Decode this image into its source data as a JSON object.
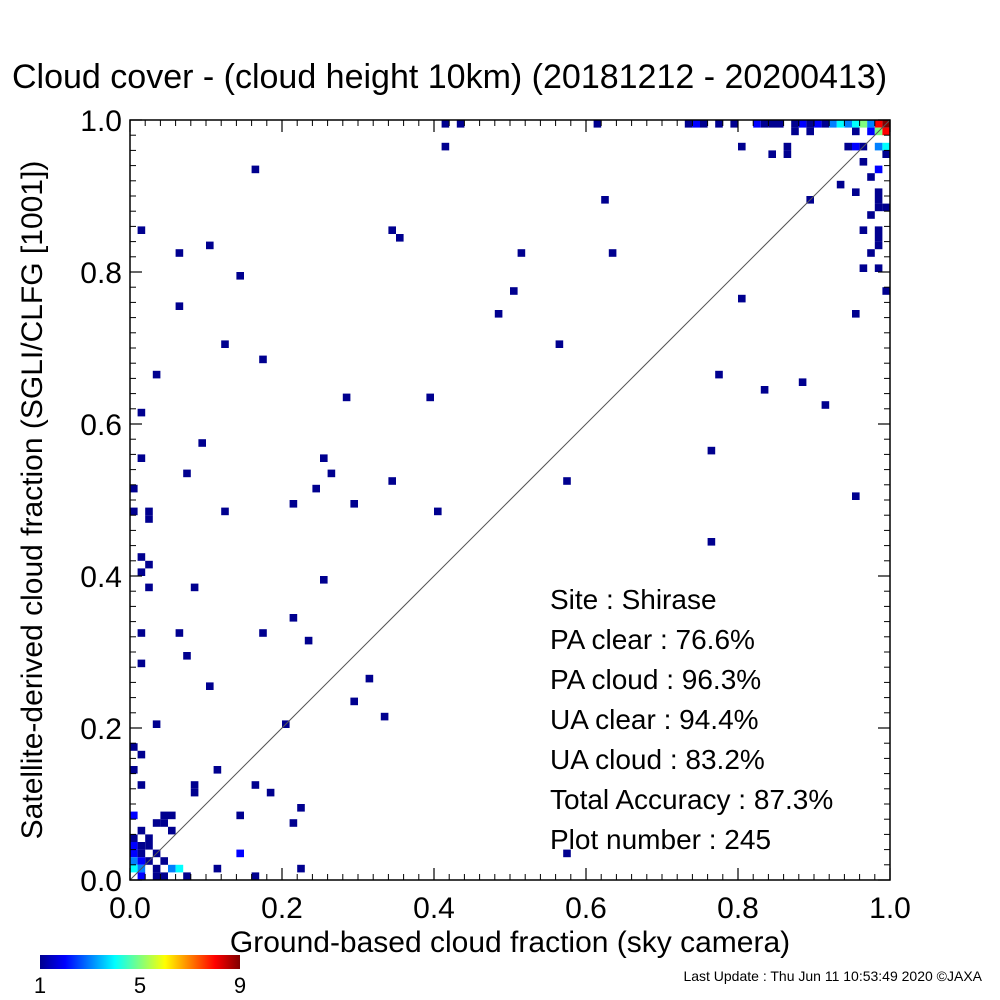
{
  "chart_data": {
    "type": "heatmap",
    "title": "Cloud cover - (cloud height 10km)  (20181212 - 20200413)",
    "xlabel": "Ground-based cloud fraction (sky camera)",
    "ylabel": "Satellite-derived cloud fraction (SGLI/CLFG [1001])",
    "xlim": [
      0.0,
      1.0
    ],
    "ylim": [
      0.0,
      1.0
    ],
    "xticks": [
      "0.0",
      "0.2",
      "0.4",
      "0.6",
      "0.8",
      "1.0"
    ],
    "yticks": [
      "0.0",
      "0.2",
      "0.4",
      "0.6",
      "0.8",
      "1.0"
    ],
    "bin_size": 0.01,
    "diagonal_line": true,
    "colorbar": {
      "min": 1,
      "max": 9,
      "ticks": [
        "1",
        "5",
        "9"
      ]
    },
    "stats": [
      {
        "label": "Site : Shirase"
      },
      {
        "label": "PA clear :  76.6%"
      },
      {
        "label": "PA cloud :  96.3%"
      },
      {
        "label": "UA clear :  94.4%"
      },
      {
        "label": "UA cloud :  83.2%"
      },
      {
        "label": "Total Accuracy :  87.3%"
      },
      {
        "label": "Plot number :       245"
      }
    ],
    "points": [
      {
        "x": 0.16,
        "y": 0.93,
        "c": 1
      },
      {
        "x": 0.01,
        "y": 0.85,
        "c": 1
      },
      {
        "x": 0.06,
        "y": 0.82,
        "c": 1
      },
      {
        "x": 0.1,
        "y": 0.83,
        "c": 1
      },
      {
        "x": 0.14,
        "y": 0.79,
        "c": 1
      },
      {
        "x": 0.06,
        "y": 0.75,
        "c": 1
      },
      {
        "x": 0.12,
        "y": 0.7,
        "c": 1
      },
      {
        "x": 0.17,
        "y": 0.68,
        "c": 1
      },
      {
        "x": 0.03,
        "y": 0.66,
        "c": 1
      },
      {
        "x": 0.01,
        "y": 0.61,
        "c": 1
      },
      {
        "x": 0.09,
        "y": 0.57,
        "c": 1
      },
      {
        "x": 0.01,
        "y": 0.55,
        "c": 1
      },
      {
        "x": 0.07,
        "y": 0.53,
        "c": 1
      },
      {
        "x": 0.0,
        "y": 0.51,
        "c": 1
      },
      {
        "x": 0.0,
        "y": 0.48,
        "c": 1
      },
      {
        "x": 0.02,
        "y": 0.48,
        "c": 1
      },
      {
        "x": 0.02,
        "y": 0.47,
        "c": 1
      },
      {
        "x": 0.12,
        "y": 0.48,
        "c": 1
      },
      {
        "x": 0.01,
        "y": 0.42,
        "c": 1
      },
      {
        "x": 0.02,
        "y": 0.41,
        "c": 1
      },
      {
        "x": 0.01,
        "y": 0.4,
        "c": 1
      },
      {
        "x": 0.02,
        "y": 0.38,
        "c": 1
      },
      {
        "x": 0.08,
        "y": 0.38,
        "c": 1
      },
      {
        "x": 0.01,
        "y": 0.32,
        "c": 1
      },
      {
        "x": 0.06,
        "y": 0.32,
        "c": 1
      },
      {
        "x": 0.07,
        "y": 0.29,
        "c": 1
      },
      {
        "x": 0.01,
        "y": 0.28,
        "c": 1
      },
      {
        "x": 0.1,
        "y": 0.25,
        "c": 1
      },
      {
        "x": 0.03,
        "y": 0.2,
        "c": 1
      },
      {
        "x": 0.0,
        "y": 0.17,
        "c": 1
      },
      {
        "x": 0.01,
        "y": 0.16,
        "c": 1
      },
      {
        "x": 0.0,
        "y": 0.14,
        "c": 1
      },
      {
        "x": 0.11,
        "y": 0.14,
        "c": 1
      },
      {
        "x": 0.01,
        "y": 0.12,
        "c": 1
      },
      {
        "x": 0.08,
        "y": 0.12,
        "c": 1
      },
      {
        "x": 0.08,
        "y": 0.11,
        "c": 1
      },
      {
        "x": 0.16,
        "y": 0.12,
        "c": 1
      },
      {
        "x": 0.18,
        "y": 0.11,
        "c": 1
      },
      {
        "x": 0.22,
        "y": 0.09,
        "c": 1
      },
      {
        "x": 0.14,
        "y": 0.08,
        "c": 1
      },
      {
        "x": 0.21,
        "y": 0.07,
        "c": 1
      },
      {
        "x": 0.0,
        "y": 0.08,
        "c": 2
      },
      {
        "x": 0.03,
        "y": 0.07,
        "c": 1
      },
      {
        "x": 0.04,
        "y": 0.08,
        "c": 1
      },
      {
        "x": 0.05,
        "y": 0.08,
        "c": 1
      },
      {
        "x": 0.04,
        "y": 0.07,
        "c": 1
      },
      {
        "x": 0.01,
        "y": 0.06,
        "c": 1
      },
      {
        "x": 0.0,
        "y": 0.05,
        "c": 1
      },
      {
        "x": 0.02,
        "y": 0.05,
        "c": 1
      },
      {
        "x": 0.05,
        "y": 0.06,
        "c": 1
      },
      {
        "x": 0.0,
        "y": 0.04,
        "c": 2
      },
      {
        "x": 0.01,
        "y": 0.04,
        "c": 1
      },
      {
        "x": 0.02,
        "y": 0.04,
        "c": 1
      },
      {
        "x": 0.0,
        "y": 0.03,
        "c": 2
      },
      {
        "x": 0.01,
        "y": 0.03,
        "c": 1
      },
      {
        "x": 0.03,
        "y": 0.03,
        "c": 1
      },
      {
        "x": 0.14,
        "y": 0.03,
        "c": 2
      },
      {
        "x": 0.0,
        "y": 0.02,
        "c": 3
      },
      {
        "x": 0.01,
        "y": 0.02,
        "c": 2
      },
      {
        "x": 0.02,
        "y": 0.02,
        "c": 1
      },
      {
        "x": 0.04,
        "y": 0.02,
        "c": 1
      },
      {
        "x": 0.0,
        "y": 0.01,
        "c": 4
      },
      {
        "x": 0.01,
        "y": 0.01,
        "c": 3
      },
      {
        "x": 0.03,
        "y": 0.01,
        "c": 1
      },
      {
        "x": 0.05,
        "y": 0.01,
        "c": 3
      },
      {
        "x": 0.06,
        "y": 0.01,
        "c": 4
      },
      {
        "x": 0.11,
        "y": 0.01,
        "c": 1
      },
      {
        "x": 0.22,
        "y": 0.01,
        "c": 1
      },
      {
        "x": 0.01,
        "y": 0.0,
        "c": 2
      },
      {
        "x": 0.03,
        "y": 0.0,
        "c": 1
      },
      {
        "x": 0.04,
        "y": 0.0,
        "c": 1
      },
      {
        "x": 0.07,
        "y": 0.0,
        "c": 1
      },
      {
        "x": 0.16,
        "y": 0.0,
        "c": 1
      },
      {
        "x": 0.34,
        "y": 0.85,
        "c": 1
      },
      {
        "x": 0.35,
        "y": 0.84,
        "c": 1
      },
      {
        "x": 0.28,
        "y": 0.63,
        "c": 1
      },
      {
        "x": 0.39,
        "y": 0.63,
        "c": 1
      },
      {
        "x": 0.25,
        "y": 0.55,
        "c": 1
      },
      {
        "x": 0.26,
        "y": 0.53,
        "c": 1
      },
      {
        "x": 0.24,
        "y": 0.51,
        "c": 1
      },
      {
        "x": 0.34,
        "y": 0.52,
        "c": 1
      },
      {
        "x": 0.21,
        "y": 0.49,
        "c": 1
      },
      {
        "x": 0.29,
        "y": 0.49,
        "c": 1
      },
      {
        "x": 0.4,
        "y": 0.48,
        "c": 1
      },
      {
        "x": 0.25,
        "y": 0.39,
        "c": 1
      },
      {
        "x": 0.21,
        "y": 0.34,
        "c": 1
      },
      {
        "x": 0.17,
        "y": 0.32,
        "c": 1
      },
      {
        "x": 0.23,
        "y": 0.31,
        "c": 1
      },
      {
        "x": 0.31,
        "y": 0.26,
        "c": 1
      },
      {
        "x": 0.29,
        "y": 0.23,
        "c": 1
      },
      {
        "x": 0.33,
        "y": 0.21,
        "c": 1
      },
      {
        "x": 0.2,
        "y": 0.2,
        "c": 1
      },
      {
        "x": 0.41,
        "y": 0.99,
        "c": 1
      },
      {
        "x": 0.43,
        "y": 0.99,
        "c": 1
      },
      {
        "x": 0.41,
        "y": 0.96,
        "c": 1
      },
      {
        "x": 0.61,
        "y": 0.99,
        "c": 1
      },
      {
        "x": 0.62,
        "y": 0.89,
        "c": 1
      },
      {
        "x": 0.51,
        "y": 0.82,
        "c": 1
      },
      {
        "x": 0.63,
        "y": 0.82,
        "c": 1
      },
      {
        "x": 0.5,
        "y": 0.77,
        "c": 1
      },
      {
        "x": 0.48,
        "y": 0.74,
        "c": 1
      },
      {
        "x": 0.56,
        "y": 0.7,
        "c": 1
      },
      {
        "x": 0.57,
        "y": 0.52,
        "c": 1
      },
      {
        "x": 0.57,
        "y": 0.03,
        "c": 1
      },
      {
        "x": 0.73,
        "y": 0.99,
        "c": 1
      },
      {
        "x": 0.74,
        "y": 0.99,
        "c": 2
      },
      {
        "x": 0.75,
        "y": 0.99,
        "c": 1
      },
      {
        "x": 0.77,
        "y": 0.99,
        "c": 1
      },
      {
        "x": 0.79,
        "y": 0.99,
        "c": 1
      },
      {
        "x": 0.82,
        "y": 0.99,
        "c": 2
      },
      {
        "x": 0.83,
        "y": 0.99,
        "c": 1
      },
      {
        "x": 0.84,
        "y": 0.99,
        "c": 1
      },
      {
        "x": 0.85,
        "y": 0.99,
        "c": 1
      },
      {
        "x": 0.87,
        "y": 0.99,
        "c": 1
      },
      {
        "x": 0.88,
        "y": 0.99,
        "c": 2
      },
      {
        "x": 0.89,
        "y": 0.99,
        "c": 1
      },
      {
        "x": 0.9,
        "y": 0.99,
        "c": 2
      },
      {
        "x": 0.91,
        "y": 0.99,
        "c": 1
      },
      {
        "x": 0.92,
        "y": 0.99,
        "c": 3
      },
      {
        "x": 0.93,
        "y": 0.99,
        "c": 4
      },
      {
        "x": 0.94,
        "y": 0.99,
        "c": 3
      },
      {
        "x": 0.95,
        "y": 0.99,
        "c": 4
      },
      {
        "x": 0.96,
        "y": 0.99,
        "c": 5
      },
      {
        "x": 0.97,
        "y": 0.99,
        "c": 3
      },
      {
        "x": 0.98,
        "y": 0.99,
        "c": 8
      },
      {
        "x": 0.99,
        "y": 0.99,
        "c": 9
      },
      {
        "x": 0.87,
        "y": 0.98,
        "c": 1
      },
      {
        "x": 0.89,
        "y": 0.98,
        "c": 1
      },
      {
        "x": 0.95,
        "y": 0.98,
        "c": 1
      },
      {
        "x": 0.97,
        "y": 0.98,
        "c": 2
      },
      {
        "x": 0.98,
        "y": 0.98,
        "c": 5
      },
      {
        "x": 0.99,
        "y": 0.98,
        "c": 8
      },
      {
        "x": 0.8,
        "y": 0.96,
        "c": 1
      },
      {
        "x": 0.86,
        "y": 0.96,
        "c": 1
      },
      {
        "x": 0.94,
        "y": 0.96,
        "c": 1
      },
      {
        "x": 0.95,
        "y": 0.96,
        "c": 2
      },
      {
        "x": 0.96,
        "y": 0.96,
        "c": 1
      },
      {
        "x": 0.98,
        "y": 0.96,
        "c": 3
      },
      {
        "x": 0.99,
        "y": 0.96,
        "c": 4
      },
      {
        "x": 0.84,
        "y": 0.95,
        "c": 1
      },
      {
        "x": 0.86,
        "y": 0.95,
        "c": 1
      },
      {
        "x": 0.99,
        "y": 0.95,
        "c": 1
      },
      {
        "x": 0.96,
        "y": 0.94,
        "c": 1
      },
      {
        "x": 0.97,
        "y": 0.92,
        "c": 1
      },
      {
        "x": 0.98,
        "y": 0.93,
        "c": 2
      },
      {
        "x": 0.93,
        "y": 0.91,
        "c": 1
      },
      {
        "x": 0.95,
        "y": 0.9,
        "c": 1
      },
      {
        "x": 0.98,
        "y": 0.9,
        "c": 1
      },
      {
        "x": 0.89,
        "y": 0.89,
        "c": 1
      },
      {
        "x": 0.98,
        "y": 0.89,
        "c": 1
      },
      {
        "x": 0.98,
        "y": 0.88,
        "c": 1
      },
      {
        "x": 0.99,
        "y": 0.88,
        "c": 1
      },
      {
        "x": 0.97,
        "y": 0.87,
        "c": 1
      },
      {
        "x": 0.96,
        "y": 0.85,
        "c": 1
      },
      {
        "x": 0.98,
        "y": 0.85,
        "c": 1
      },
      {
        "x": 0.98,
        "y": 0.84,
        "c": 1
      },
      {
        "x": 0.98,
        "y": 0.83,
        "c": 1
      },
      {
        "x": 0.97,
        "y": 0.82,
        "c": 1
      },
      {
        "x": 0.96,
        "y": 0.8,
        "c": 1
      },
      {
        "x": 0.98,
        "y": 0.8,
        "c": 1
      },
      {
        "x": 0.99,
        "y": 0.77,
        "c": 1
      },
      {
        "x": 0.8,
        "y": 0.76,
        "c": 1
      },
      {
        "x": 0.95,
        "y": 0.74,
        "c": 1
      },
      {
        "x": 0.77,
        "y": 0.66,
        "c": 1
      },
      {
        "x": 0.88,
        "y": 0.65,
        "c": 1
      },
      {
        "x": 0.83,
        "y": 0.64,
        "c": 1
      },
      {
        "x": 0.91,
        "y": 0.62,
        "c": 1
      },
      {
        "x": 0.76,
        "y": 0.56,
        "c": 1
      },
      {
        "x": 0.95,
        "y": 0.5,
        "c": 1
      },
      {
        "x": 0.76,
        "y": 0.44,
        "c": 1
      }
    ]
  },
  "footer": "Last Update : Thu Jun 11 10:53:49 2020  ©JAXA"
}
